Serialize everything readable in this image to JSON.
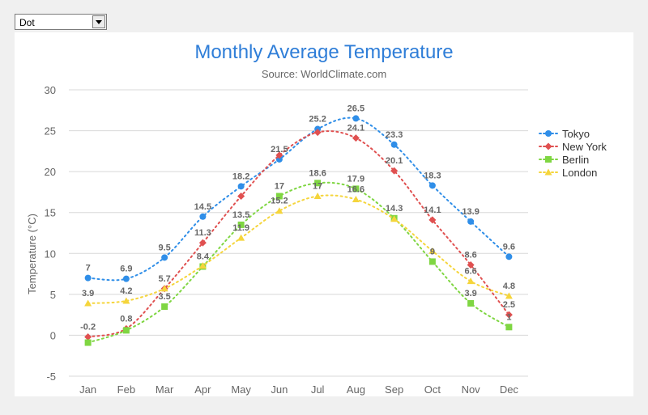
{
  "selector": {
    "selected": "Dot",
    "arrow_icon": "chevron-down-icon"
  },
  "chart_data": {
    "type": "line",
    "title": "Monthly Average Temperature",
    "subtitle": "Source: WorldClimate.com",
    "ylabel": "Temperature (°C)",
    "xlabel": "",
    "categories": [
      "Jan",
      "Feb",
      "Mar",
      "Apr",
      "May",
      "Jun",
      "Jul",
      "Aug",
      "Sep",
      "Oct",
      "Nov",
      "Dec"
    ],
    "ylim": [
      -5,
      30
    ],
    "yticks": [
      -5,
      0,
      5,
      10,
      15,
      20,
      25,
      30
    ],
    "grid": true,
    "legend": "right",
    "line_style": "dot",
    "series": [
      {
        "name": "Tokyo",
        "color": "#2f8ee8",
        "marker": "circle",
        "values": [
          7,
          6.9,
          9.5,
          14.5,
          18.2,
          21.5,
          25.2,
          26.5,
          23.3,
          18.3,
          13.9,
          9.6
        ]
      },
      {
        "name": "New York",
        "color": "#e05050",
        "marker": "diamond",
        "values": [
          -0.2,
          0.8,
          5.7,
          11.3,
          17,
          22,
          24.8,
          24.1,
          20.1,
          14.1,
          8.6,
          2.5
        ]
      },
      {
        "name": "Berlin",
        "color": "#7fd642",
        "marker": "square",
        "values": [
          -0.9,
          0.6,
          3.5,
          8.4,
          13.5,
          17,
          18.6,
          17.9,
          14.3,
          9,
          3.9,
          1
        ]
      },
      {
        "name": "London",
        "color": "#f5d53c",
        "marker": "triangle",
        "values": [
          3.9,
          4.2,
          5.7,
          8.5,
          11.9,
          15.2,
          17,
          16.6,
          14.2,
          10.3,
          6.6,
          4.8
        ]
      }
    ],
    "data_labels": [
      {
        "series": 0,
        "point": 0,
        "text": "7"
      },
      {
        "series": 0,
        "point": 1,
        "text": "6.9"
      },
      {
        "series": 0,
        "point": 2,
        "text": "9.5"
      },
      {
        "series": 0,
        "point": 3,
        "text": "14.5"
      },
      {
        "series": 0,
        "point": 4,
        "text": "18.2"
      },
      {
        "series": 0,
        "point": 5,
        "text": "21.5"
      },
      {
        "series": 0,
        "point": 6,
        "text": "25.2"
      },
      {
        "series": 0,
        "point": 7,
        "text": "26.5"
      },
      {
        "series": 0,
        "point": 8,
        "text": "23.3"
      },
      {
        "series": 0,
        "point": 9,
        "text": "18.3"
      },
      {
        "series": 0,
        "point": 10,
        "text": "13.9"
      },
      {
        "series": 0,
        "point": 11,
        "text": "9.6"
      },
      {
        "series": 1,
        "point": 0,
        "text": "-0.2"
      },
      {
        "series": 1,
        "point": 1,
        "text": "0.8"
      },
      {
        "series": 1,
        "point": 2,
        "text": "5.7"
      },
      {
        "series": 1,
        "point": 3,
        "text": "11.3"
      },
      {
        "series": 1,
        "point": 7,
        "text": "24.1"
      },
      {
        "series": 1,
        "point": 8,
        "text": "20.1"
      },
      {
        "series": 1,
        "point": 9,
        "text": "14.1"
      },
      {
        "series": 1,
        "point": 10,
        "text": "8.6"
      },
      {
        "series": 1,
        "point": 11,
        "text": "2.5"
      },
      {
        "series": 2,
        "point": 2,
        "text": "3.5"
      },
      {
        "series": 2,
        "point": 3,
        "text": "8.4"
      },
      {
        "series": 2,
        "point": 4,
        "text": "13.5"
      },
      {
        "series": 2,
        "point": 5,
        "text": "17"
      },
      {
        "series": 2,
        "point": 6,
        "text": "18.6"
      },
      {
        "series": 2,
        "point": 7,
        "text": "17.9"
      },
      {
        "series": 2,
        "point": 8,
        "text": "14.3"
      },
      {
        "series": 2,
        "point": 9,
        "text": "9"
      },
      {
        "series": 2,
        "point": 10,
        "text": "3.9"
      },
      {
        "series": 2,
        "point": 11,
        "text": "1"
      },
      {
        "series": 3,
        "point": 0,
        "text": "3.9"
      },
      {
        "series": 3,
        "point": 1,
        "text": "4.2"
      },
      {
        "series": 3,
        "point": 4,
        "text": "11.9"
      },
      {
        "series": 3,
        "point": 5,
        "text": "15.2"
      },
      {
        "series": 3,
        "point": 6,
        "text": "17"
      },
      {
        "series": 3,
        "point": 7,
        "text": "16.6"
      },
      {
        "series": 3,
        "point": 10,
        "text": "6.6"
      },
      {
        "series": 3,
        "point": 11,
        "text": "4.8"
      }
    ]
  }
}
